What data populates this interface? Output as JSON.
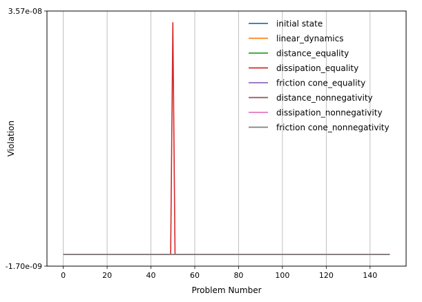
{
  "chart_data": {
    "type": "line",
    "title": "",
    "xlabel": "Problem Number",
    "ylabel": "Violation",
    "xlim": [
      -7.45,
      156.45
    ],
    "ylim": [
      -1.7e-09,
      3.57e-08
    ],
    "x_ticks": [
      0,
      20,
      40,
      60,
      80,
      100,
      120,
      140
    ],
    "y_tick_labels": [
      "3.57e-08",
      "-1.70e-09"
    ],
    "grid": "vertical",
    "legend_position": "top-right",
    "series": [
      {
        "name": "initial state",
        "color": "#1f77b4",
        "points": [
          [
            0,
            0
          ],
          [
            149,
            0
          ]
        ]
      },
      {
        "name": "linear_dynamics",
        "color": "#ff7f0e",
        "points": [
          [
            0,
            0
          ],
          [
            149,
            0
          ]
        ]
      },
      {
        "name": "distance_equality",
        "color": "#2ca02c",
        "points": [
          [
            0,
            0
          ],
          [
            149,
            0
          ]
        ]
      },
      {
        "name": "dissipation_equality",
        "color": "#d62728",
        "points": [
          [
            0,
            0
          ],
          [
            49,
            0
          ],
          [
            50,
            3.4e-08
          ],
          [
            51,
            0
          ],
          [
            149,
            0
          ]
        ]
      },
      {
        "name": "friction cone_equality",
        "color": "#9467bd",
        "points": [
          [
            0,
            0
          ],
          [
            149,
            0
          ]
        ]
      },
      {
        "name": "distance_nonnegativity",
        "color": "#8c564b",
        "points": [
          [
            0,
            0
          ],
          [
            149,
            0
          ]
        ]
      },
      {
        "name": "dissipation_nonnegativity",
        "color": "#e377c2",
        "points": [
          [
            0,
            0
          ],
          [
            149,
            0
          ]
        ]
      },
      {
        "name": "friction cone_nonnegativity",
        "color": "#7f7f7f",
        "points": [
          [
            0,
            0
          ],
          [
            149,
            0
          ]
        ]
      }
    ]
  }
}
